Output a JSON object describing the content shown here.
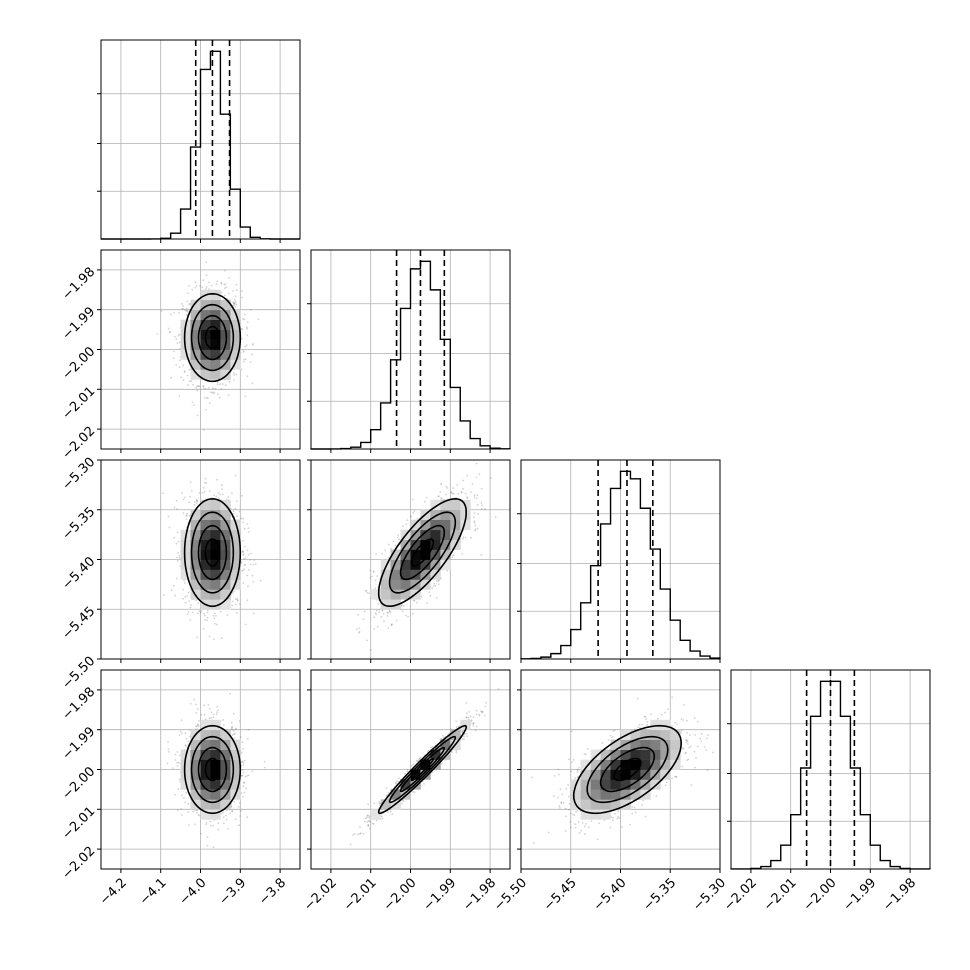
{
  "chart_data": {
    "type": "corner",
    "grid": true,
    "quantiles": [
      0.16,
      0.5,
      0.84
    ],
    "params": [
      {
        "range": [
          -4.25,
          -3.75
        ],
        "ticks": [
          -4.2,
          -4.1,
          -4.0,
          -3.9,
          -3.8
        ],
        "tick_labels": [
          "−4.2",
          "−4.1",
          "−4.0",
          "−3.9",
          "−3.8"
        ],
        "mean": -3.97,
        "sd": 0.035,
        "q": [
          -4.012,
          -3.97,
          -3.927
        ]
      },
      {
        "range": [
          -2.025,
          -1.975
        ],
        "ticks": [
          -2.02,
          -2.01,
          -2.0,
          -1.99,
          -1.98
        ],
        "tick_labels": [
          "−2.02",
          "−2.01",
          "−2.00",
          "−1.99",
          "−1.98"
        ],
        "mean": -1.997,
        "sd": 0.0055,
        "q": [
          -2.0035,
          -1.9975,
          -1.9915
        ]
      },
      {
        "range": [
          -5.5,
          -5.3
        ],
        "ticks": [
          -5.5,
          -5.45,
          -5.4,
          -5.35,
          -5.3
        ],
        "tick_labels": [
          "−5.50",
          "−5.45",
          "−5.40",
          "−5.35",
          "−5.30"
        ],
        "mean": -5.393,
        "sd": 0.027,
        "q": [
          -5.4225,
          -5.3935,
          -5.3675
        ]
      },
      {
        "range": [
          -2.025,
          -1.975
        ],
        "ticks": [
          -2.02,
          -2.01,
          -2.0,
          -1.99,
          -1.98
        ],
        "tick_labels": [
          "−2.02",
          "−2.01",
          "−2.00",
          "−1.99",
          "−1.98"
        ],
        "mean": -2.0,
        "sd": 0.0055,
        "q": [
          -2.006,
          -2.0,
          -1.994
        ]
      }
    ],
    "correlations": {
      "0-1": 0.0,
      "0-2": 0.0,
      "0-3": 0.0,
      "1-2": 0.75,
      "1-3": 0.97,
      "2-3": 0.6
    }
  },
  "colors": {
    "hist": "#000000",
    "scatter": "#808080",
    "grid": "#b0b0b0"
  }
}
